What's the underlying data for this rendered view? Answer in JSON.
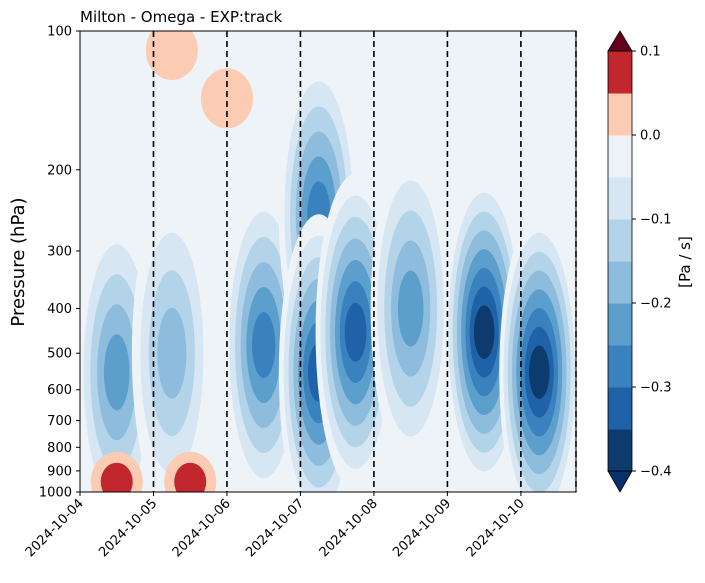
{
  "chart_data": {
    "type": "heatmap",
    "subtype": "filled-contour time-pressure cross-section",
    "title": "Milton - Omega - EXP:track",
    "xlabel": "",
    "ylabel": "Pressure (hPa)",
    "y_scale": "log",
    "y_inverted": true,
    "ylim": [
      1000,
      100
    ],
    "y_ticks": [
      "100",
      "200",
      "300",
      "400",
      "500",
      "600",
      "700",
      "800",
      "900",
      "1000"
    ],
    "y_tick_values": [
      100,
      200,
      300,
      400,
      500,
      600,
      700,
      800,
      900,
      1000
    ],
    "xlim": [
      "2024-10-04",
      "2024-10-10T18:00"
    ],
    "x_ticks": [
      "2024-10-04",
      "2024-10-05",
      "2024-10-06",
      "2024-10-07",
      "2024-10-08",
      "2024-10-09",
      "2024-10-10"
    ],
    "vertical_dashed_lines": [
      "2024-10-05",
      "2024-10-06",
      "2024-10-07",
      "2024-10-08",
      "2024-10-09",
      "2024-10-10",
      "2024-10-10T18:00"
    ],
    "grid": false,
    "colorbar": {
      "label": "[Pa / s]",
      "colormap": "RdBu_r",
      "extend": "both",
      "levels": [
        -0.4,
        -0.35,
        -0.3,
        -0.25,
        -0.2,
        -0.15,
        -0.1,
        -0.05,
        0.0,
        0.05,
        0.1
      ],
      "tick_values": [
        -0.4,
        -0.3,
        -0.2,
        -0.1,
        0.0,
        0.1
      ],
      "tick_labels": [
        "−0.4",
        "−0.3",
        "−0.2",
        "−0.1",
        "0.0",
        "0.1"
      ],
      "colors": [
        "#0d3b6e",
        "#1f62a8",
        "#3a82be",
        "#5c9fcd",
        "#8dbcdc",
        "#b3d3e8",
        "#d6e6f2",
        "#eef3f8",
        "#fbcbb3",
        "#c1272d"
      ],
      "under_color": "#08306b",
      "over_color": "#67001f"
    },
    "features": [
      {
        "date": "2024-10-04T12:00",
        "pressure": 550,
        "omega": -0.25
      },
      {
        "date": "2024-10-05T06:00",
        "pressure": 500,
        "omega": -0.22
      },
      {
        "date": "2024-10-06T12:00",
        "pressure": 480,
        "omega": -0.28
      },
      {
        "date": "2024-10-07T06:00",
        "pressure": 250,
        "omega": -0.32
      },
      {
        "date": "2024-10-07T06:00",
        "pressure": 550,
        "omega": -0.33
      },
      {
        "date": "2024-10-07T18:00",
        "pressure": 450,
        "omega": -0.33
      },
      {
        "date": "2024-10-08T12:00",
        "pressure": 400,
        "omega": -0.26
      },
      {
        "date": "2024-10-09T12:00",
        "pressure": 450,
        "omega": -0.38
      },
      {
        "date": "2024-10-10T06:00",
        "pressure": 550,
        "omega": -0.4
      },
      {
        "date": "2024-10-04T12:00",
        "pressure": 950,
        "omega": 0.12
      },
      {
        "date": "2024-10-05T12:00",
        "pressure": 950,
        "omega": 0.08
      },
      {
        "date": "2024-10-06T00:00",
        "pressure": 140,
        "omega": 0.04
      },
      {
        "date": "2024-10-05T06:00",
        "pressure": 110,
        "omega": 0.05
      }
    ]
  }
}
